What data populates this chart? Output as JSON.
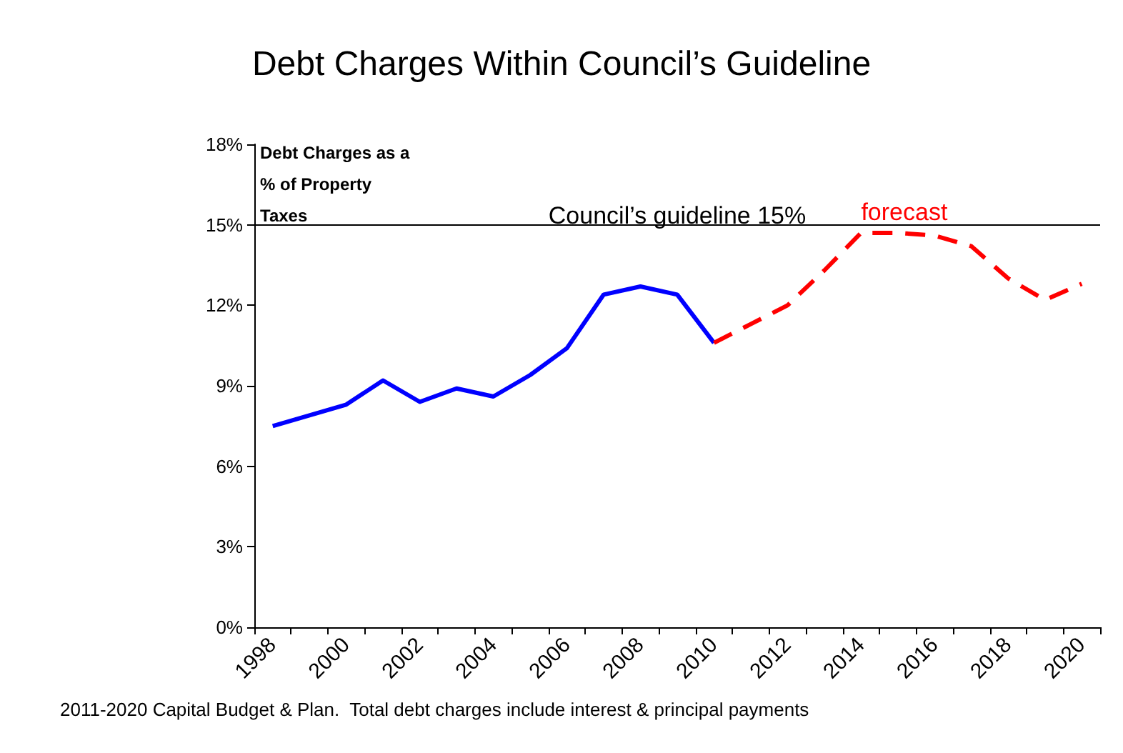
{
  "chart_data": {
    "type": "line",
    "title": "Debt Charges Within Council’s Guideline",
    "ylabel": "Debt Charges as a\n% of Property\nTaxes",
    "categories": [
      "1998",
      null,
      "2000",
      null,
      "2002",
      null,
      "2004",
      null,
      "2006",
      null,
      "2008",
      null,
      "2010",
      null,
      "2012",
      null,
      "2014",
      null,
      "2016",
      null,
      "2018",
      null,
      "2020"
    ],
    "series": [
      {
        "color": "#0000ff",
        "line_style": "solid",
        "values": [
          7.5,
          7.9,
          8.3,
          9.2,
          8.4,
          8.9,
          8.6,
          9.4,
          10.4,
          12.4,
          12.7,
          12.4,
          10.6,
          null,
          null,
          null,
          null,
          null,
          null,
          null,
          null,
          null,
          null
        ]
      },
      {
        "name": "forecast",
        "color": "#ff0000",
        "line_style": "dashed",
        "values": [
          null,
          null,
          null,
          null,
          null,
          null,
          null,
          null,
          null,
          null,
          null,
          null,
          10.6,
          11.3,
          12.0,
          13.3,
          14.7,
          14.7,
          14.6,
          14.2,
          13.0,
          12.2,
          12.8
        ]
      }
    ],
    "ylim": [
      0,
      18
    ],
    "yticks": [
      {
        "value": 0,
        "label": "0%"
      },
      {
        "value": 3,
        "label": "3%"
      },
      {
        "value": 6,
        "label": "6%"
      },
      {
        "value": 9,
        "label": "9%"
      },
      {
        "value": 12,
        "label": "12%"
      },
      {
        "value": 15,
        "label": "15%"
      },
      {
        "value": 18,
        "label": "18%"
      }
    ],
    "ref_lines": [
      {
        "axis": "y",
        "value": 15,
        "label": "Council’s guideline 15%",
        "color": "#000000"
      }
    ],
    "annotations": [
      "2011-2020 Capital Budget & Plan.  Total debt charges include interest & principal payments"
    ],
    "grid": false,
    "legend": false,
    "marker": "none"
  }
}
